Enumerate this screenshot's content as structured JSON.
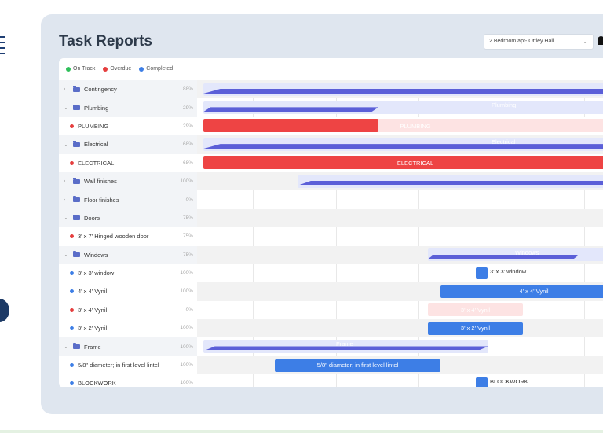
{
  "header": {
    "title": "Task Reports",
    "project": "2 Bedroom apt- Ottley Hall"
  },
  "legend": [
    {
      "label": "On Track",
      "color": "#2fbf5a"
    },
    {
      "label": "Overdue",
      "color": "#e53e3e"
    },
    {
      "label": "Completed",
      "color": "#3d7ee6"
    }
  ],
  "rows": [
    {
      "kind": "group",
      "label": "Contingency",
      "pct": "88%",
      "expanded": false
    },
    {
      "kind": "group",
      "label": "Plumbing",
      "pct": "29%",
      "expanded": true,
      "bar_label": "Plumbing"
    },
    {
      "kind": "task",
      "label": "PLUMBING",
      "pct": "29%",
      "status": "overdue",
      "bar_label": "PLUMBING"
    },
    {
      "kind": "group",
      "label": "Electrical",
      "pct": "68%",
      "expanded": true,
      "bar_label": "Electrical"
    },
    {
      "kind": "task",
      "label": "ELECTRICAL",
      "pct": "68%",
      "status": "overdue",
      "bar_label": "ELECTRICAL"
    },
    {
      "kind": "group",
      "label": "Wall finishes",
      "pct": "100%",
      "expanded": false
    },
    {
      "kind": "group",
      "label": "Floor finishes",
      "pct": "0%",
      "expanded": false
    },
    {
      "kind": "group",
      "label": "Doors",
      "pct": "75%",
      "expanded": true
    },
    {
      "kind": "task",
      "label": "3' x 7' Hinged wooden door",
      "pct": "75%",
      "status": "overdue"
    },
    {
      "kind": "group",
      "label": "Windows",
      "pct": "75%",
      "expanded": true,
      "bar_label": "Windows"
    },
    {
      "kind": "task",
      "label": "3' x 3' window",
      "pct": "100%",
      "status": "completed",
      "bar_label": "3' x 3' window"
    },
    {
      "kind": "task",
      "label": "4' x 4' Vynil",
      "pct": "100%",
      "status": "completed",
      "bar_label": "4' x 4' Vynil"
    },
    {
      "kind": "task",
      "label": "3' x 4' Vynil",
      "pct": "0%",
      "status": "overdue",
      "bar_label": "3' x 4' Vynil"
    },
    {
      "kind": "task",
      "label": "3' x 2' Vynil",
      "pct": "100%",
      "status": "completed",
      "bar_label": "3' x 2' Vynil"
    },
    {
      "kind": "group",
      "label": "Frame",
      "pct": "100%",
      "expanded": true,
      "bar_label": "Frame"
    },
    {
      "kind": "task",
      "label": "5/8\" diameter; in first level lintel",
      "pct": "100%",
      "status": "completed",
      "bar_label": "5/8\" diameter; in first level lintel"
    },
    {
      "kind": "task",
      "label": "BLOCKWORK",
      "pct": "100%",
      "status": "completed",
      "bar_label": "BLOCKWORK"
    }
  ],
  "colors": {
    "overdue": "#e53e3e",
    "completed": "#3d7ee6",
    "summary": "#5b5fd8"
  }
}
